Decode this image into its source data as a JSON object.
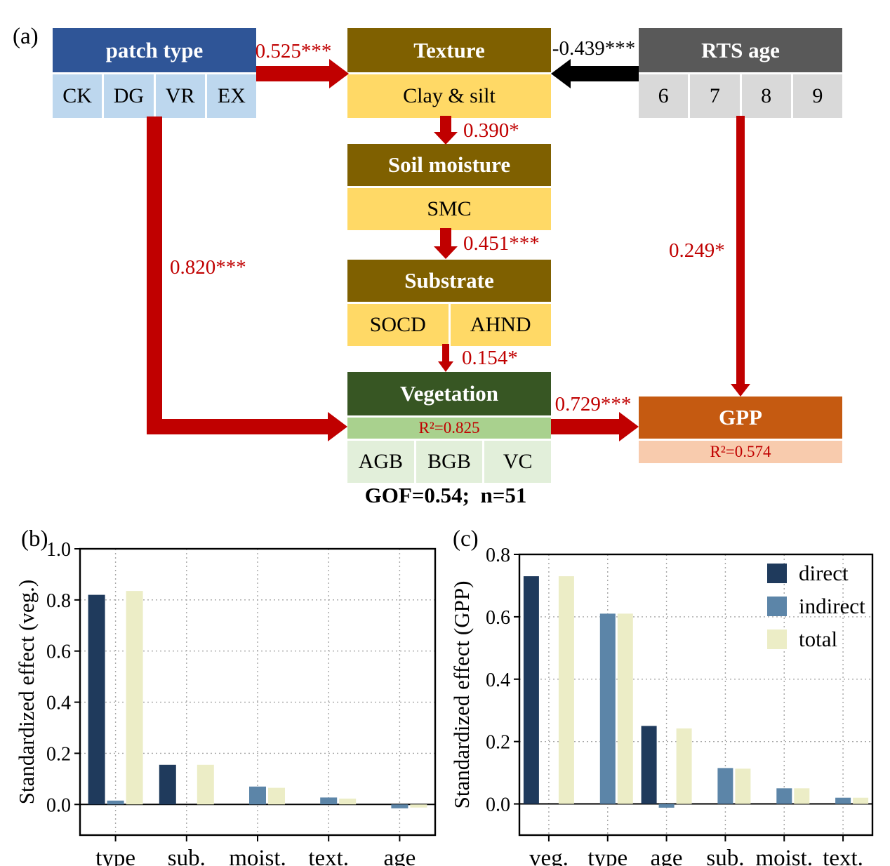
{
  "figure": {
    "panel_a_label": "(a)",
    "panel_b_label": "(b)",
    "panel_c_label": "(c)"
  },
  "diagram": {
    "boxes": {
      "patch_type": {
        "title": "patch type",
        "cells": [
          "CK",
          "DG",
          "VR",
          "EX"
        ]
      },
      "texture": {
        "title": "Texture",
        "cells": [
          "Clay & silt"
        ]
      },
      "rts_age": {
        "title": "RTS age",
        "cells": [
          "6",
          "7",
          "8",
          "9"
        ]
      },
      "soil_moisture": {
        "title": "Soil moisture",
        "cells": [
          "SMC"
        ]
      },
      "substrate": {
        "title": "Substrate",
        "cells": [
          "SOCD",
          "AHND"
        ]
      },
      "vegetation": {
        "title": "Vegetation",
        "r2": "R²=0.825",
        "cells": [
          "AGB",
          "BGB",
          "VC"
        ]
      },
      "gpp": {
        "title": "GPP",
        "r2": "R²=0.574"
      }
    },
    "paths": {
      "patch_to_texture": "0.525***",
      "rts_to_texture": "-0.439***",
      "texture_to_moisture": "0.390*",
      "moisture_to_substrate": "0.451***",
      "substrate_to_vegetation": "0.154*",
      "patch_to_vegetation": "0.820***",
      "vegetation_to_gpp": "0.729***",
      "rts_to_gpp": "0.249*"
    },
    "gof": "GOF=0.54;  n=51"
  },
  "colors": {
    "patch_header": "#2f5597",
    "patch_cell": "#bdd7ee",
    "soil_header": "#7f6000",
    "soil_cell": "#ffd966",
    "age_header": "#595959",
    "age_cell": "#d9d9d9",
    "veg_header": "#375623",
    "veg_band": "#a9d18e",
    "veg_cell": "#e2efda",
    "gpp_header": "#c55a11",
    "gpp_band": "#f8cbad",
    "arrow_red": "#c00000",
    "arrow_black": "#000000",
    "coef_red": "#c00000"
  },
  "chart_data": [
    {
      "type": "bar",
      "panel": "(b)",
      "title": "",
      "xlabel": "",
      "ylabel": "Standardized effect (veg.)",
      "categories": [
        "type",
        "sub.",
        "moist.",
        "text.",
        "age"
      ],
      "series": [
        {
          "name": "direct",
          "color": "#1f3a5c",
          "values": [
            0.82,
            0.155,
            0,
            0,
            0
          ]
        },
        {
          "name": "indirect",
          "color": "#5c85a8",
          "values": [
            0.015,
            0,
            0.07,
            0.027,
            -0.015
          ]
        },
        {
          "name": "total",
          "color": "#ecedc6",
          "values": [
            0.835,
            0.155,
            0.065,
            0.023,
            -0.012
          ]
        }
      ],
      "ylim": [
        -0.12,
        1.0
      ],
      "yticks": [
        0.0,
        0.2,
        0.4,
        0.6,
        0.8,
        1.0
      ],
      "ytick_labels": [
        "0.0",
        "0.2",
        "0.4",
        "0.6",
        "0.8",
        "1.0"
      ],
      "grid": "dotted",
      "legend": false
    },
    {
      "type": "bar",
      "panel": "(c)",
      "title": "",
      "xlabel": "",
      "ylabel": "Standardized effect (GPP)",
      "categories": [
        "veg.",
        "type",
        "age",
        "sub.",
        "moist.",
        "text."
      ],
      "series": [
        {
          "name": "direct",
          "color": "#1f3a5c",
          "values": [
            0.73,
            0,
            0.25,
            0,
            0,
            0
          ]
        },
        {
          "name": "indirect",
          "color": "#5c85a8",
          "values": [
            0,
            0.61,
            -0.012,
            0.115,
            0.05,
            0.02
          ]
        },
        {
          "name": "total",
          "color": "#ecedc6",
          "values": [
            0.73,
            0.61,
            0.242,
            0.113,
            0.05,
            0.02
          ]
        }
      ],
      "ylim": [
        -0.1,
        0.8
      ],
      "yticks": [
        0.0,
        0.2,
        0.4,
        0.6,
        0.8
      ],
      "ytick_labels": [
        "0.0",
        "0.2",
        "0.4",
        "0.6",
        "0.8"
      ],
      "grid": "dotted",
      "legend": true,
      "legend_position": "upper right",
      "legend_entries": [
        "direct",
        "indirect",
        "total"
      ]
    }
  ]
}
